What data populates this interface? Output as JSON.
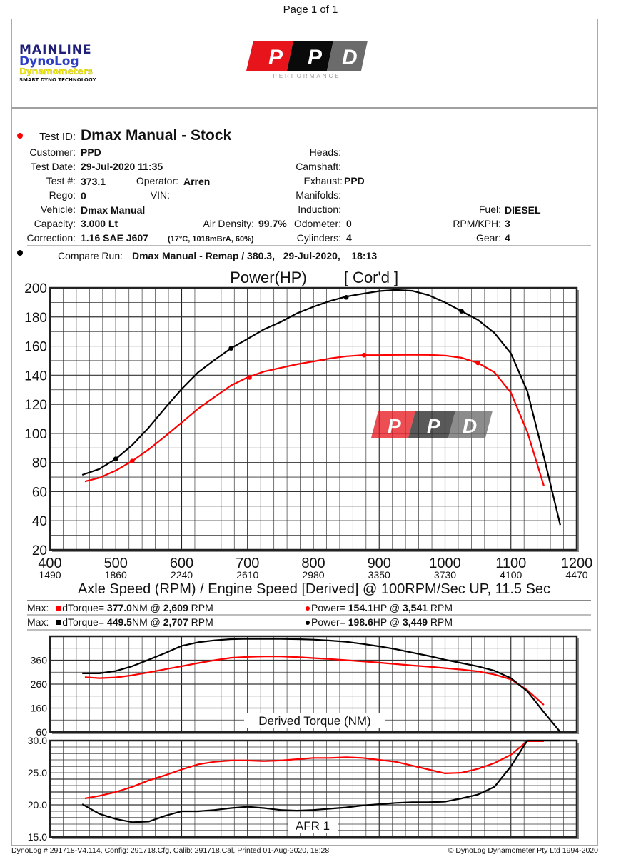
{
  "page": {
    "label": "Page 1 of 1"
  },
  "logos": {
    "mainline": [
      "MAINLINE",
      "DynoLog",
      "Dynamometers",
      "SMART DYNO TECHNOLOGY"
    ],
    "ppd": {
      "letters": [
        "P",
        "P",
        "D"
      ],
      "subtitle": "PERFORMANCE",
      "colors": [
        "#e8141c",
        "#0a0a0a",
        "#6b6b6b"
      ]
    }
  },
  "test": {
    "test_id_label": "Test ID:",
    "test_id": "Dmax Manual - Stock",
    "customer_label": "Customer:",
    "customer": "PPD",
    "test_date_label": "Test Date:",
    "test_date": "29-Jul-2020 11:35",
    "test_num_label": "Test #:",
    "test_num": "373.1",
    "operator_label": "Operator:",
    "operator": "Arren",
    "rego_label": "Rego:",
    "rego": "0",
    "vin_label": "VIN:",
    "vin": "",
    "vehicle_label": "Vehicle:",
    "vehicle": "Dmax Manual",
    "capacity_label": "Capacity:",
    "capacity": "3.000 Lt",
    "air_density_label": "Air Density:",
    "air_density": "99.7%",
    "correction_label": "Correction:",
    "correction": "1.16 SAE J607",
    "correction_detail": "(17°C, 1018mBrA, 60%)",
    "heads_label": "Heads:",
    "heads": "",
    "camshaft_label": "Camshaft:",
    "camshaft": "",
    "exhaust_label": "Exhaust:",
    "exhaust": "PPD",
    "manifolds_label": "Manifolds:",
    "manifolds": "",
    "induction_label": "Induction:",
    "induction": "",
    "odometer_label": "Odometer:",
    "odometer": "0",
    "cylinders_label": "Cylinders:",
    "cylinders": "4",
    "fuel_label": "Fuel:",
    "fuel": "DIESEL",
    "rpm_kph_label": "RPM/KPH:",
    "rpm_kph": "3",
    "gear_label": "Gear:",
    "gear": "4",
    "compare_label": "Compare Run:",
    "compare": "Dmax Manual - Remap / 380.3,   29-Jul-2020,    18:13"
  },
  "max": {
    "row1": {
      "label": "Max:",
      "torque_prefix": "dTorque=",
      "torque": "377.0",
      "torque_unit": "NM @",
      "torque_rpm": "2,609",
      "rpm_unit": "RPM",
      "power_prefix": "Power=",
      "power": "154.1",
      "power_unit": "HP @",
      "power_rpm": "3,541",
      "rpm_unit2": "RPM"
    },
    "row2": {
      "label": "Max:",
      "torque_prefix": "dTorque=",
      "torque": "449.5",
      "torque_unit": "NM @",
      "torque_rpm": "2,707",
      "rpm_unit": "RPM",
      "power_prefix": "Power=",
      "power": "198.6",
      "power_unit": "HP @",
      "power_rpm": "3,449",
      "rpm_unit2": "RPM"
    }
  },
  "footer": {
    "left": "DynoLog # 291718-V4.114, Config: 291718.Cfg, Calib: 291718.Cal, Printed 01-Aug-2020, 18:28",
    "right": "© DynoLog Dynamometer Pty Ltd 1994-2020"
  },
  "colors": {
    "stock": "#ff0000",
    "remap": "#000000",
    "grid": "#333333"
  },
  "chart_data": [
    {
      "type": "line",
      "title": "Power(HP)",
      "subtitle": "[ Cor'd ]",
      "xlabel": "Axle Speed (RPM) / Engine Speed [Derived] @ 100RPM/Sec UP, 11.5 Sec",
      "ylabel": "",
      "xlim": [
        400,
        1200
      ],
      "ylim": [
        20,
        200
      ],
      "xticks": [
        400,
        500,
        600,
        700,
        800,
        900,
        1000,
        1100,
        1200
      ],
      "xticks_secondary": [
        1490,
        1860,
        2240,
        2610,
        2980,
        3350,
        3730,
        4100,
        4470
      ],
      "yticks": [
        20,
        40,
        60,
        80,
        100,
        120,
        140,
        160,
        180,
        200
      ],
      "grid": true,
      "series": [
        {
          "name": "Dmax Manual - Stock",
          "color": "#ff0000",
          "x": [
            453,
            475,
            500,
            525,
            550,
            575,
            600,
            625,
            650,
            675,
            700,
            725,
            750,
            775,
            800,
            825,
            850,
            875,
            900,
            925,
            950,
            975,
            1000,
            1025,
            1050,
            1075,
            1100,
            1125,
            1150
          ],
          "y": [
            67,
            69.5,
            74.5,
            81,
            89,
            98,
            107.5,
            117,
            125,
            133,
            138.5,
            142.5,
            145,
            147.5,
            149.5,
            151.5,
            153,
            153.8,
            153.8,
            154,
            154.1,
            154,
            153.5,
            152,
            148.5,
            142,
            128,
            101,
            64
          ],
          "markers": [
            [
              525,
              81
            ],
            [
              703,
              138.5
            ],
            [
              877,
              153.8
            ],
            [
              1050,
              148.5
            ]
          ]
        },
        {
          "name": "Dmax Manual - Remap / 380.3",
          "color": "#000000",
          "x": [
            449,
            475,
            500,
            525,
            550,
            575,
            600,
            625,
            650,
            675,
            700,
            725,
            750,
            775,
            800,
            825,
            850,
            875,
            900,
            925,
            950,
            975,
            1000,
            1025,
            1050,
            1075,
            1100,
            1125,
            1150,
            1175
          ],
          "y": [
            71.5,
            75.5,
            82.5,
            92,
            104,
            117.5,
            130.5,
            142,
            150.5,
            158.5,
            165,
            171.5,
            176.5,
            182.5,
            187,
            191,
            194,
            196,
            197.8,
            198.6,
            198,
            195,
            190,
            184,
            178,
            169,
            155,
            129,
            84,
            37
          ],
          "markers": [
            [
              500,
              82.5
            ],
            [
              675,
              158.5
            ],
            [
              850,
              193.5
            ],
            [
              1025,
              184
            ]
          ]
        }
      ]
    },
    {
      "type": "line",
      "title": "Derived Torque (NM)",
      "xlim": [
        400,
        1200
      ],
      "ylim": [
        60,
        460
      ],
      "yticks": [
        60,
        160,
        260,
        360
      ],
      "grid": true,
      "series": [
        {
          "name": "Dmax Manual - Stock",
          "color": "#ff0000",
          "x": [
            453,
            475,
            500,
            525,
            550,
            575,
            600,
            625,
            650,
            675,
            700,
            725,
            750,
            775,
            800,
            825,
            850,
            875,
            900,
            925,
            950,
            975,
            1000,
            1025,
            1050,
            1075,
            1100,
            1125,
            1150
          ],
          "y": [
            289,
            285,
            288,
            297,
            309,
            322,
            335,
            348,
            360,
            370,
            374,
            376,
            376,
            373,
            369,
            365,
            360,
            355,
            350,
            344,
            338,
            333,
            327,
            321,
            313,
            300,
            280,
            235,
            173
          ]
        },
        {
          "name": "Dmax Manual - Remap / 380.3",
          "color": "#000000",
          "x": [
            449,
            475,
            500,
            525,
            550,
            575,
            600,
            625,
            650,
            675,
            700,
            725,
            750,
            775,
            800,
            825,
            850,
            875,
            900,
            925,
            950,
            975,
            1000,
            1025,
            1050,
            1075,
            1100,
            1125,
            1150,
            1175
          ],
          "y": [
            305,
            305,
            315,
            335,
            362,
            390,
            420,
            435,
            443,
            448,
            449.5,
            449,
            449,
            448,
            446,
            442,
            437,
            428,
            418,
            406,
            392,
            378,
            362,
            348,
            334,
            316,
            285,
            230,
            143,
            60
          ]
        }
      ]
    },
    {
      "type": "line",
      "title": "AFR 1",
      "xlim": [
        400,
        1200
      ],
      "ylim": [
        15,
        30
      ],
      "yticks": [
        15.0,
        20.0,
        25.0,
        30.0
      ],
      "grid": true,
      "series": [
        {
          "name": "Dmax Manual - Stock",
          "color": "#ff0000",
          "x": [
            453,
            475,
            500,
            525,
            550,
            575,
            600,
            625,
            650,
            675,
            700,
            725,
            750,
            775,
            800,
            825,
            850,
            875,
            900,
            925,
            950,
            975,
            1000,
            1025,
            1050,
            1075,
            1100,
            1125,
            1150
          ],
          "y": [
            21.0,
            21.4,
            22.0,
            22.8,
            23.8,
            24.6,
            25.5,
            26.3,
            26.7,
            26.9,
            26.9,
            26.8,
            26.9,
            27.1,
            27.3,
            27.3,
            27.4,
            27.3,
            27.0,
            26.7,
            26.1,
            25.5,
            24.9,
            25.0,
            25.6,
            26.5,
            27.8,
            29.9,
            29.9
          ]
        },
        {
          "name": "Dmax Manual - Remap / 380.3",
          "color": "#000000",
          "x": [
            449,
            475,
            500,
            525,
            550,
            575,
            600,
            625,
            650,
            675,
            700,
            725,
            750,
            775,
            800,
            825,
            850,
            875,
            900,
            925,
            950,
            975,
            1000,
            1025,
            1050,
            1075,
            1100,
            1125,
            1150,
            1175
          ],
          "y": [
            20.1,
            18.6,
            17.8,
            17.3,
            17.4,
            18.3,
            19.0,
            19.0,
            19.2,
            19.5,
            19.7,
            19.5,
            19.2,
            19.1,
            19.2,
            19.4,
            19.6,
            19.9,
            20.1,
            20.3,
            20.4,
            20.4,
            20.5,
            21.0,
            21.6,
            22.8,
            26.0,
            30.0,
            30.0,
            30.0
          ]
        }
      ]
    }
  ]
}
